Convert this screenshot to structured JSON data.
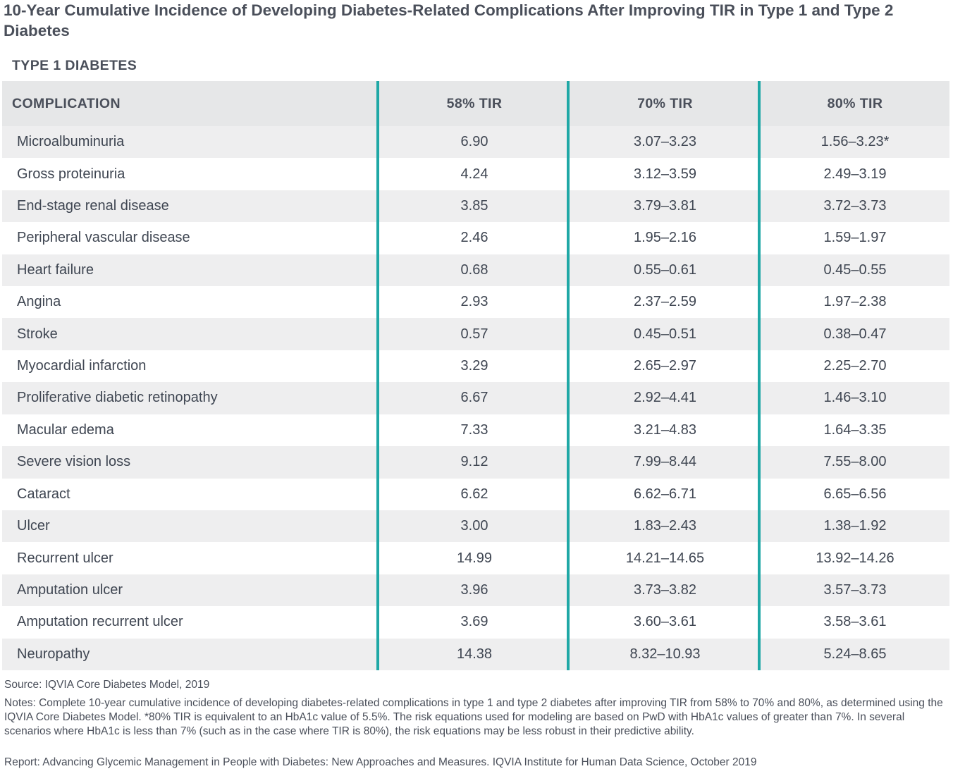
{
  "title": "10-Year Cumulative Incidence of Developing Diabetes-Related Complications After Improving TIR in Type 1 and Type 2 Diabetes",
  "section_label": "TYPE 1 DIABETES",
  "colors": {
    "header_bg": "#e6e7e8",
    "row_shade": "#eeeeef",
    "divider": "#1fa8a6",
    "text": "#3f4652"
  },
  "chart_data": {
    "type": "table",
    "title": "10-Year Cumulative Incidence of Developing Diabetes-Related Complications After Improving TIR in Type 1 and Type 2 Diabetes",
    "subtitle": "TYPE 1 DIABETES",
    "columns": [
      "COMPLICATION",
      "58% TIR",
      "70% TIR",
      "80% TIR"
    ],
    "rows": [
      [
        "Microalbuminuria",
        "6.90",
        "3.07–3.23",
        "1.56–3.23*"
      ],
      [
        "Gross proteinuria",
        "4.24",
        "3.12–3.59",
        "2.49–3.19"
      ],
      [
        "End-stage renal disease",
        "3.85",
        "3.79–3.81",
        "3.72–3.73"
      ],
      [
        "Peripheral vascular disease",
        "2.46",
        "1.95–2.16",
        "1.59–1.97"
      ],
      [
        "Heart failure",
        "0.68",
        "0.55–0.61",
        "0.45–0.55"
      ],
      [
        "Angina",
        "2.93",
        "2.37–2.59",
        "1.97–2.38"
      ],
      [
        "Stroke",
        "0.57",
        "0.45–0.51",
        "0.38–0.47"
      ],
      [
        "Myocardial infarction",
        "3.29",
        "2.65–2.97",
        "2.25–2.70"
      ],
      [
        "Proliferative diabetic retinopathy",
        "6.67",
        "2.92–4.41",
        "1.46–3.10"
      ],
      [
        "Macular edema",
        "7.33",
        "3.21–4.83",
        "1.64–3.35"
      ],
      [
        "Severe vision loss",
        "9.12",
        "7.99–8.44",
        "7.55–8.00"
      ],
      [
        "Cataract",
        "6.62",
        "6.62–6.71",
        "6.65–6.56"
      ],
      [
        "Ulcer",
        "3.00",
        "1.83–2.43",
        "1.38–1.92"
      ],
      [
        "Recurrent ulcer",
        "14.99",
        "14.21–14.65",
        "13.92–14.26"
      ],
      [
        "Amputation ulcer",
        "3.96",
        "3.73–3.82",
        "3.57–3.73"
      ],
      [
        "Amputation recurrent ulcer",
        "3.69",
        "3.60–3.61",
        "3.58–3.61"
      ],
      [
        "Neuropathy",
        "14.38",
        "8.32–10.93",
        "5.24–8.65"
      ]
    ]
  },
  "footnotes": {
    "source": "Source: IQVIA Core Diabetes Model, 2019",
    "notes": "Notes: Complete 10-year cumulative incidence of developing diabetes-related complications in type 1 and type 2 diabetes after improving TIR from 58% to 70% and 80%, as determined using the IQVIA Core Diabetes Model. *80% TIR is equivalent to an HbA1c value of 5.5%. The risk equations used for modeling are based on PwD with HbA1c values of greater than 7%. In several scenarios where HbA1c is less than 7% (such as in the case where TIR is 80%), the risk equations may be less robust in their predictive ability.",
    "report": "Report: Advancing Glycemic Management in People with Diabetes: New Approaches and Measures. IQVIA Institute for Human Data Science, October 2019"
  }
}
